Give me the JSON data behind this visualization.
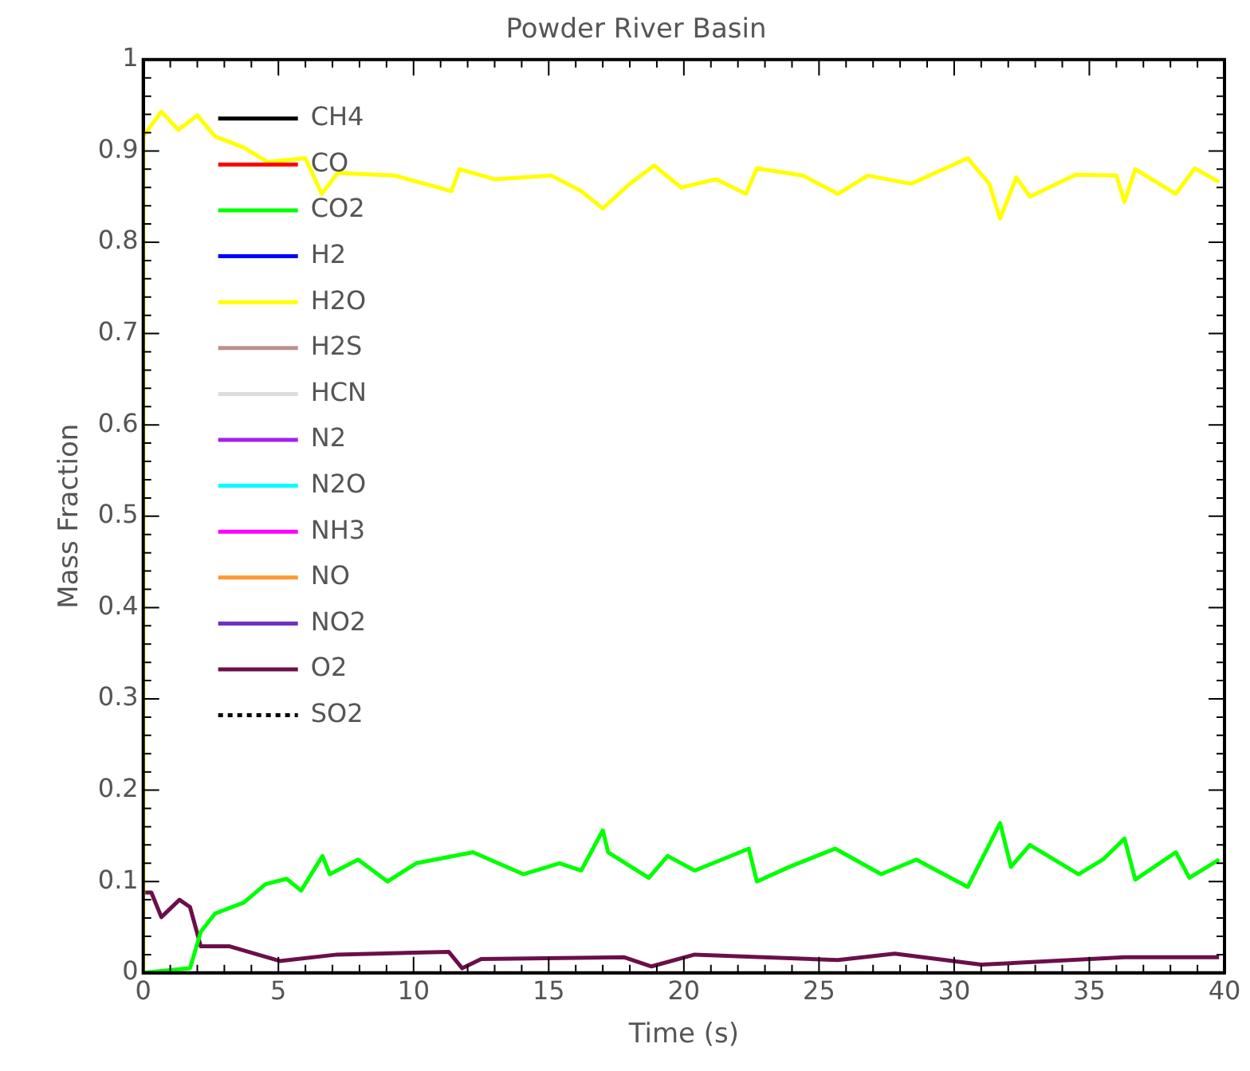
{
  "chart_data": {
    "type": "line",
    "title": "Powder River Basin",
    "xlabel": "Time (s)",
    "ylabel": "Mass Fraction",
    "xlim": [
      0,
      40
    ],
    "xticks": [
      0,
      5,
      10,
      15,
      20,
      25,
      30,
      35,
      40
    ],
    "ylim": [
      0,
      1
    ],
    "yticks": [
      0,
      0.1,
      0.2,
      0.3,
      0.4,
      0.5,
      0.6,
      0.7,
      0.8,
      0.9,
      1
    ],
    "grid": false,
    "legend": "top left",
    "marker": "none",
    "series": [
      {
        "name": "CH4",
        "color": "#000000"
      },
      {
        "name": "CO",
        "color": "#ff0000"
      },
      {
        "name": "CO2",
        "color": "#00ff00",
        "x": [
          0,
          1.73,
          2.13,
          2.66,
          3.72,
          4.52,
          5.3,
          5.84,
          6.63,
          6.9,
          7.95,
          9.04,
          10.1,
          12.2,
          14.06,
          15.4,
          16.2,
          17,
          17.2,
          18.7,
          19.4,
          20.4,
          22.4,
          22.7,
          23.9,
          25.6,
          27.3,
          28.6,
          30.5,
          31.7,
          32.1,
          32.8,
          34.6,
          35.5,
          36.3,
          36.7,
          38.2,
          38.7,
          39.8
        ],
        "values": [
          0,
          0.005,
          0.045,
          0.065,
          0.077,
          0.097,
          0.103,
          0.09,
          0.128,
          0.108,
          0.124,
          0.1,
          0.12,
          0.132,
          0.108,
          0.12,
          0.112,
          0.156,
          0.132,
          0.104,
          0.128,
          0.112,
          0.136,
          0.1,
          0.116,
          0.136,
          0.108,
          0.124,
          0.094,
          0.164,
          0.116,
          0.14,
          0.108,
          0.124,
          0.147,
          0.102,
          0.132,
          0.104,
          0.124
        ]
      },
      {
        "name": "H2",
        "color": "#0000ff"
      },
      {
        "name": "H2O",
        "color": "#ffff00",
        "x": [
          0,
          0,
          0.67,
          1.3,
          2.0,
          2.65,
          3.7,
          4.6,
          6.0,
          6.6,
          7.2,
          9.3,
          11.4,
          11.7,
          13.0,
          15.1,
          16.2,
          17.0,
          18.0,
          18.9,
          19.9,
          21.2,
          22.3,
          22.7,
          24.4,
          25.7,
          26.8,
          28.4,
          30.5,
          31.3,
          31.7,
          32.3,
          32.8,
          34.5,
          36,
          36.3,
          36.7,
          38.2,
          38.9,
          39.8
        ],
        "values": [
          0,
          0.916,
          0.943,
          0.923,
          0.939,
          0.916,
          0.904,
          0.888,
          0.892,
          0.853,
          0.876,
          0.873,
          0.856,
          0.88,
          0.869,
          0.873,
          0.856,
          0.837,
          0.864,
          0.884,
          0.86,
          0.869,
          0.853,
          0.881,
          0.873,
          0.853,
          0.873,
          0.864,
          0.892,
          0.864,
          0.826,
          0.871,
          0.85,
          0.874,
          0.873,
          0.844,
          0.88,
          0.853,
          0.881,
          0.866
        ]
      },
      {
        "name": "H2S",
        "color": "#bc8f8f"
      },
      {
        "name": "HCN",
        "color": "#dddddd"
      },
      {
        "name": "N2",
        "color": "#a020f0"
      },
      {
        "name": "N2O",
        "color": "#00ffff"
      },
      {
        "name": "NH3",
        "color": "#ff00ff"
      },
      {
        "name": "NO",
        "color": "#ff9933"
      },
      {
        "name": "NO2",
        "color": "#7030c0"
      },
      {
        "name": "O2",
        "color": "#6b0f4a",
        "x": [
          0,
          0.3,
          0.67,
          1.34,
          1.73,
          2.13,
          3.2,
          5.05,
          7.17,
          11.3,
          11.8,
          12.5,
          17.8,
          18.8,
          20.4,
          25.7,
          27.8,
          31,
          36.3,
          39.8
        ],
        "values": [
          0.088,
          0.088,
          0.061,
          0.08,
          0.072,
          0.029,
          0.029,
          0.013,
          0.02,
          0.023,
          0.005,
          0.015,
          0.017,
          0.007,
          0.02,
          0.014,
          0.021,
          0.009,
          0.017,
          0.017
        ]
      },
      {
        "name": "SO2",
        "color": "#000000",
        "line_style": "dotted"
      }
    ]
  }
}
